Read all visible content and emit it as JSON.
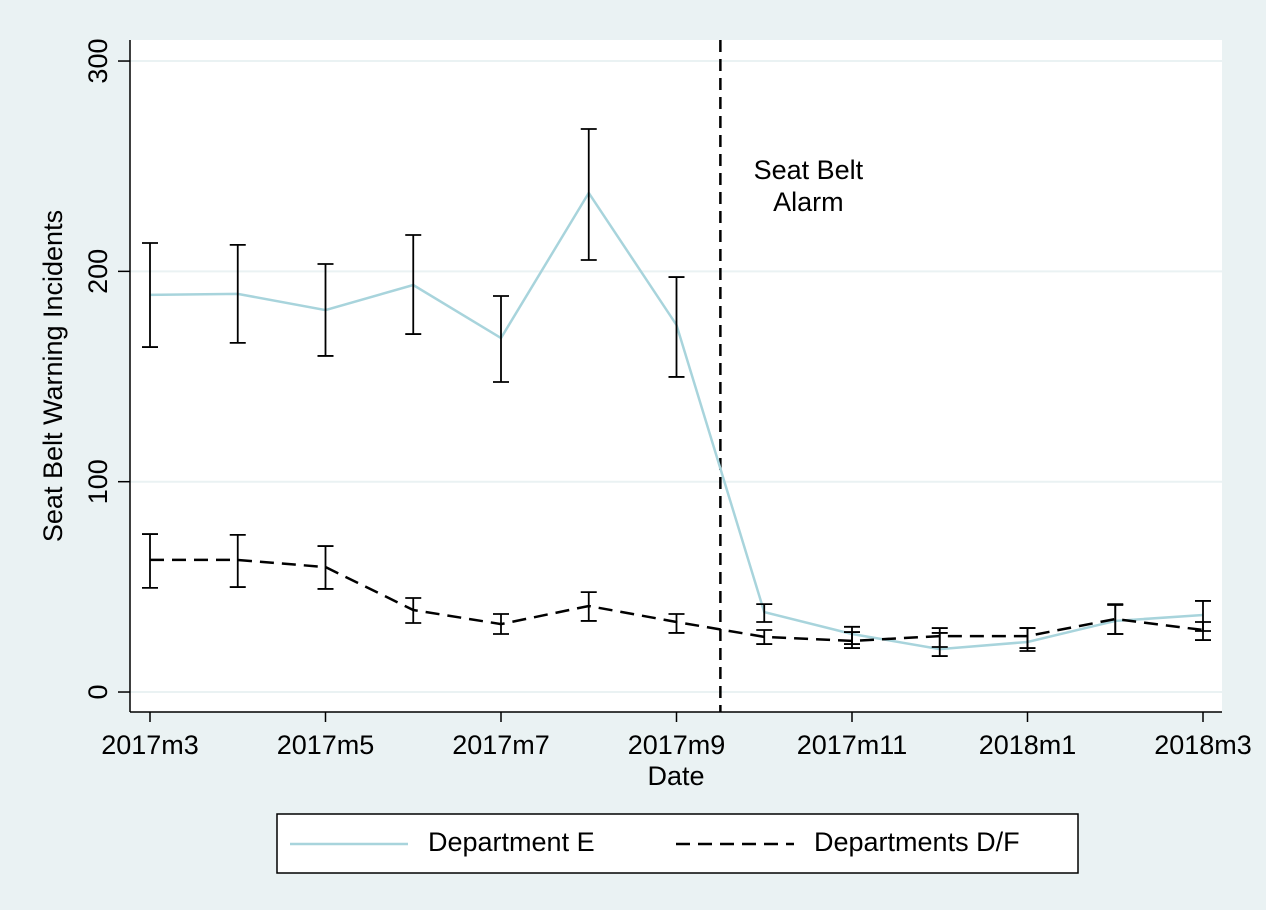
{
  "chart_data": {
    "type": "line",
    "x_label": "Date",
    "y_label": "Seat Belt Warning Incidents",
    "categories": [
      "2017m3",
      null,
      "2017m5",
      null,
      "2017m7",
      null,
      "2017m9",
      null,
      "2017m11",
      null,
      "2018m1",
      null,
      "2018m3"
    ],
    "series": [
      {
        "name": "Department E",
        "color": "#a8d4dc",
        "line_style": "solid",
        "values": [
          188.8,
          189.3,
          181.6,
          193.5,
          168.3,
          237.3,
          174.5,
          38,
          27.6,
          20.4,
          23.8,
          33.8,
          36.6
        ],
        "lower": [
          164,
          166,
          159.8,
          170.2,
          147.4,
          205.4,
          149.8,
          33.3,
          22.8,
          17.1,
          19.5,
          27.6,
          29
        ],
        "upper": [
          213.5,
          212.6,
          203.5,
          217.3,
          188.3,
          267.7,
          197.3,
          41.8,
          31,
          30.4,
          30.4,
          41.4,
          43.3
        ]
      },
      {
        "name": "Departments D/F",
        "color": "#000000",
        "line_style": "dashed",
        "values": [
          62.8,
          62.8,
          59.4,
          39,
          32.3,
          40.9,
          33.3,
          26.2,
          24.3,
          26.6,
          26.6,
          34.7,
          29.5
        ],
        "lower": [
          49.5,
          49.9,
          49,
          32.8,
          27.6,
          33.8,
          28.1,
          22.8,
          20.9,
          21.4,
          20.9,
          27.6,
          24.7
        ],
        "upper": [
          75.1,
          74.7,
          69.4,
          44.7,
          37.1,
          47.5,
          37.1,
          29.5,
          28.5,
          28.1,
          30.4,
          41.8,
          33.3
        ]
      }
    ],
    "xline": 6.5,
    "annotation": [
      "Seat Belt",
      "Alarm"
    ],
    "ylim": [
      -9.5,
      310
    ],
    "yticks": [
      0,
      100,
      200,
      300
    ],
    "grid": true,
    "legend": "bottom"
  }
}
